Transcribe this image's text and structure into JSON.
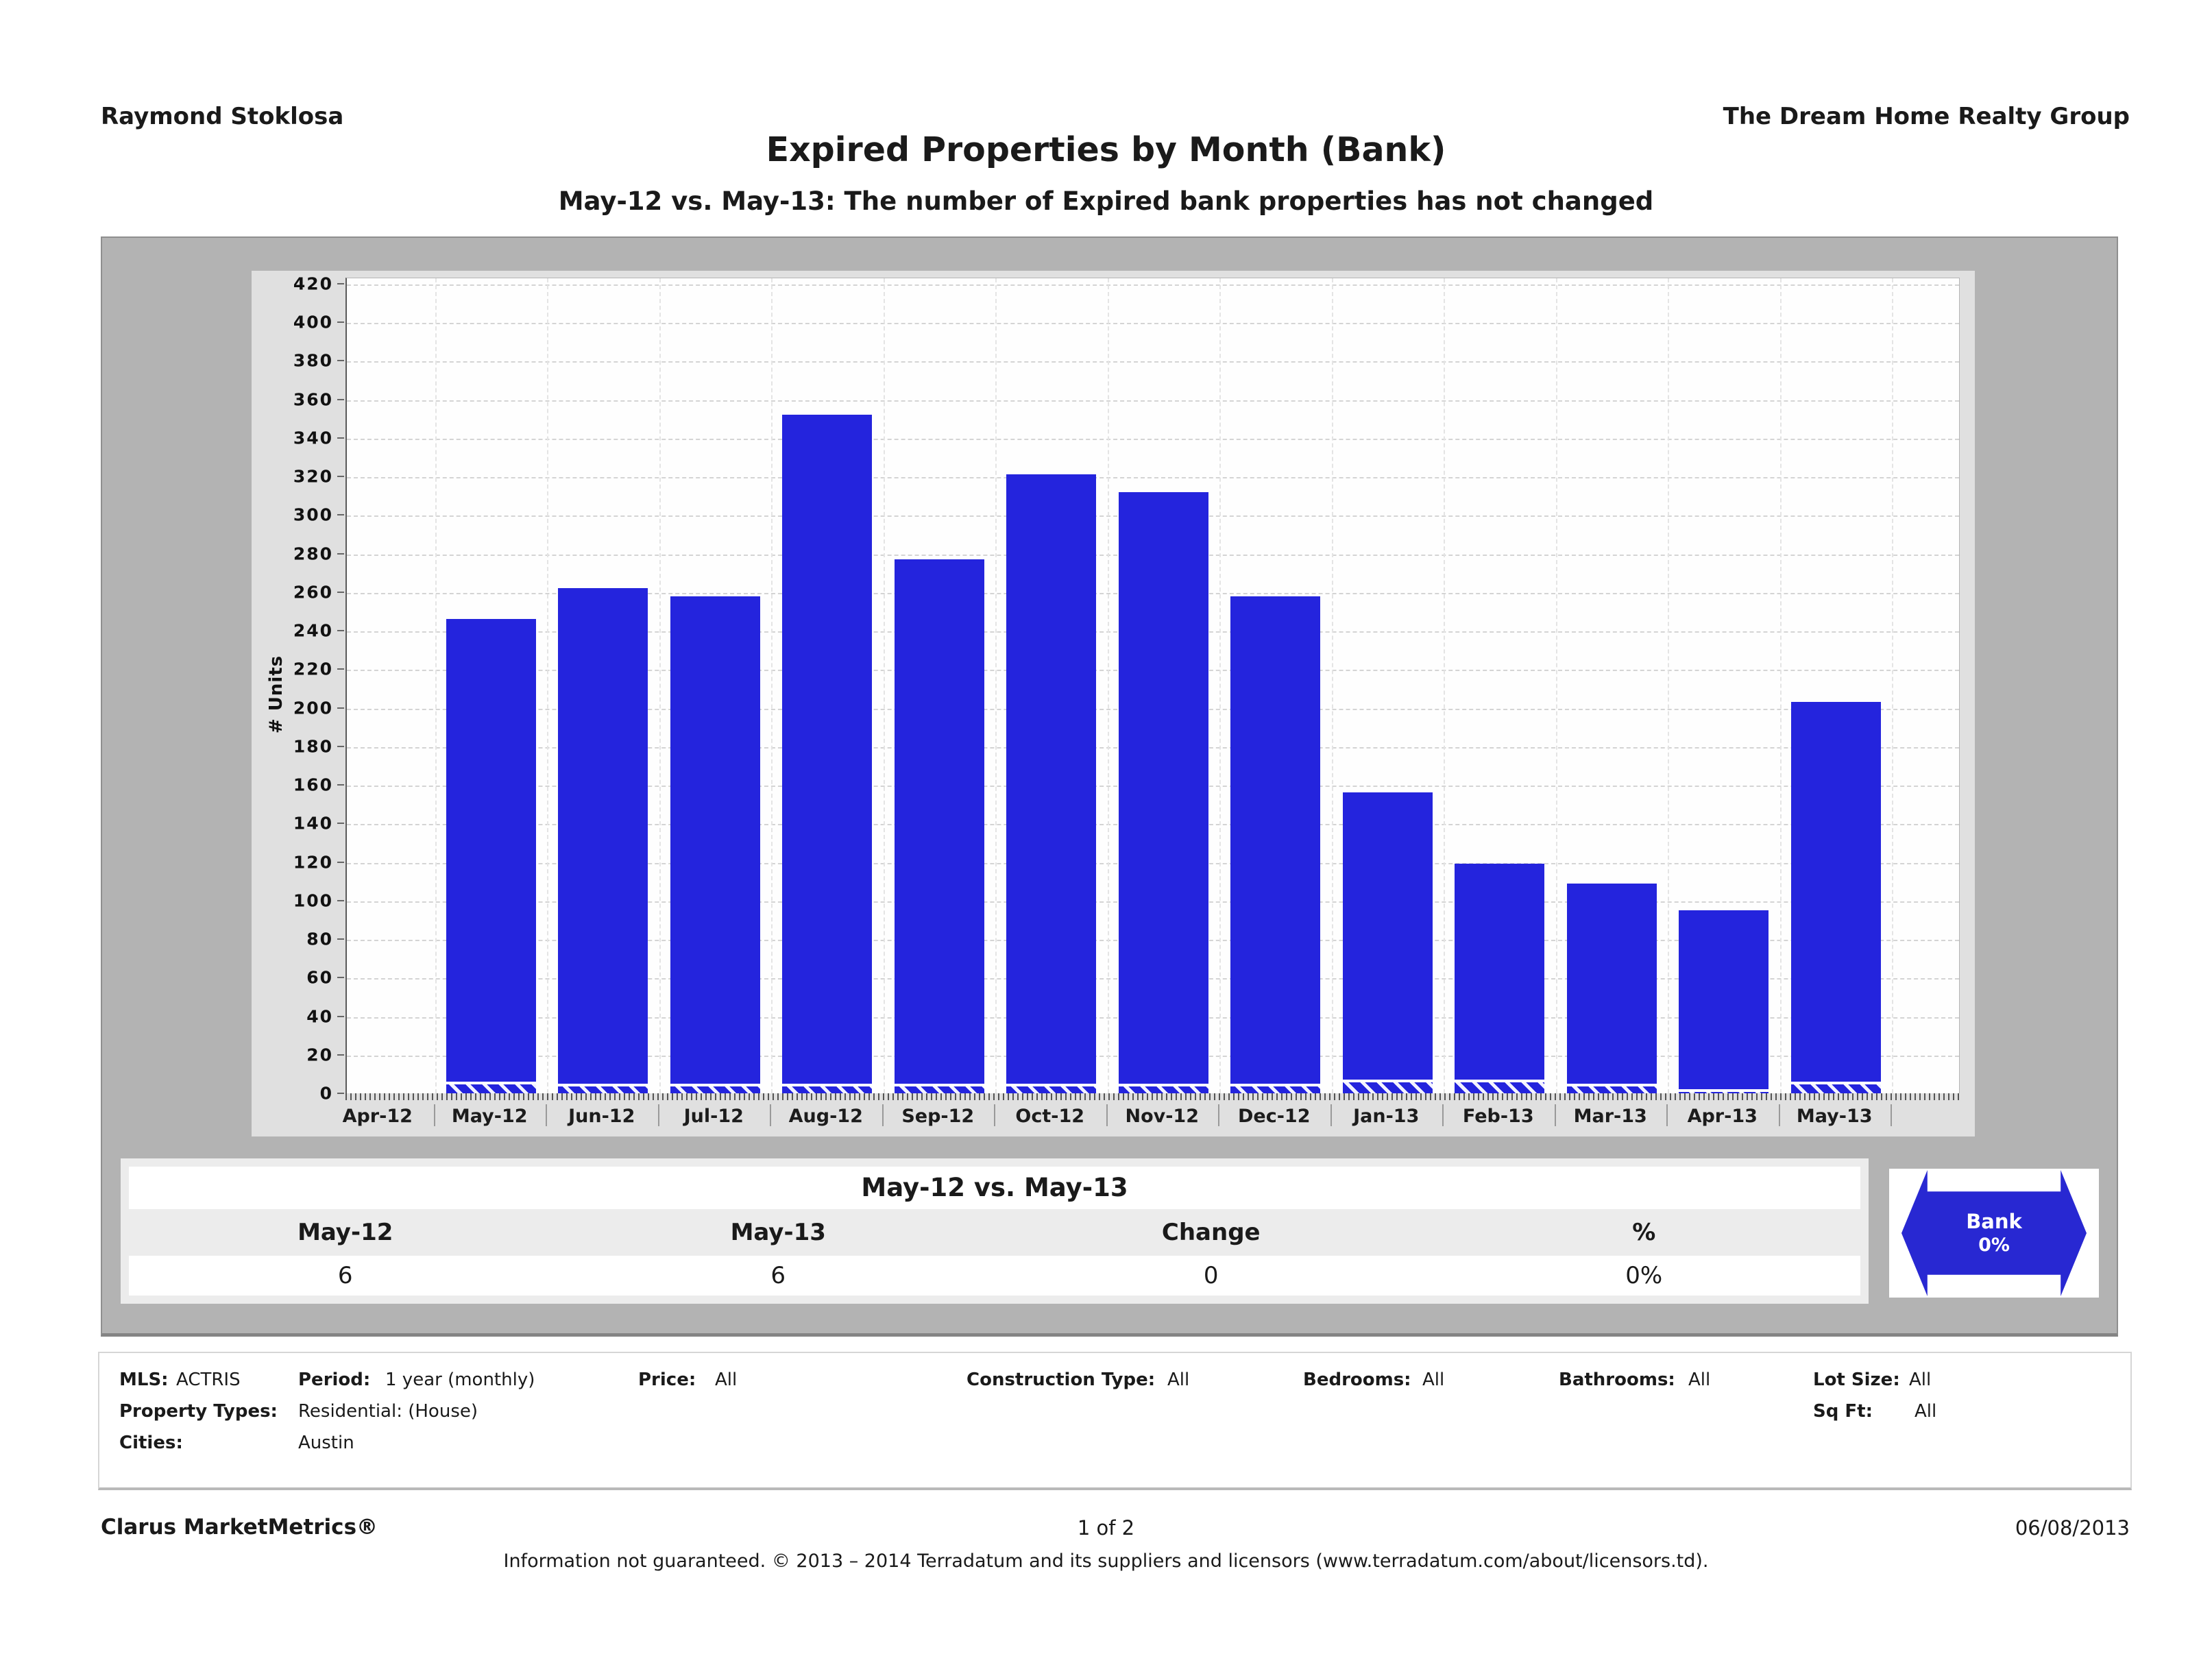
{
  "header": {
    "agent": "Raymond Stoklosa",
    "company": "The Dream Home Realty Group",
    "title": "Expired Properties by Month (Bank)",
    "subtitle": "May-12 vs. May-13: The number of Expired bank properties has not changed"
  },
  "chart_data": {
    "type": "bar",
    "title": "Expired Properties by Month (Bank)",
    "categories": [
      "Apr-12",
      "May-12",
      "Jun-12",
      "Jul-12",
      "Aug-12",
      "Sep-12",
      "Oct-12",
      "Nov-12",
      "Dec-12",
      "Jan-13",
      "Feb-13",
      "Mar-13",
      "Apr-13",
      "May-13"
    ],
    "series": [
      {
        "name": "Expired properties (solid)",
        "values": [
          0,
          246,
          262,
          258,
          352,
          277,
          321,
          312,
          258,
          156,
          119,
          109,
          95,
          203
        ]
      },
      {
        "name": "Expired bank properties (hatched)",
        "values": [
          0,
          6,
          5,
          5,
          5,
          5,
          5,
          5,
          5,
          7,
          7,
          5,
          2,
          6
        ]
      }
    ],
    "xlabel": "",
    "ylabel": "# Units",
    "ylim": [
      0,
      420
    ],
    "ytick_step": 20,
    "grid": "horizontal-dashed",
    "legend": "none",
    "bar_color": "#2424dd",
    "hatch_style": "white-diagonal-stripes"
  },
  "summary_table": {
    "title": "May-12 vs. May-13",
    "columns": [
      "May-12",
      "May-13",
      "Change",
      "%"
    ],
    "values": [
      "6",
      "6",
      "0",
      "0%"
    ]
  },
  "badge": {
    "label": "Bank",
    "value": "0%",
    "color": "#2828d2"
  },
  "filters": [
    {
      "label": "MLS:",
      "value": "ACTRIS"
    },
    {
      "label": "Period:",
      "value": "1 year (monthly)"
    },
    {
      "label": "Price:",
      "value": "All"
    },
    {
      "label": "Construction Type:",
      "value": "All"
    },
    {
      "label": "Bedrooms:",
      "value": "All"
    },
    {
      "label": "Bathrooms:",
      "value": "All"
    },
    {
      "label": "Lot Size:",
      "value": "All"
    },
    {
      "label": "Property Types:",
      "value": "Residential: (House)"
    },
    {
      "label": "Sq Ft:",
      "value": "All"
    },
    {
      "label": "Cities:",
      "value": "Austin"
    }
  ],
  "footer": {
    "brand": "Clarus MarketMetrics®",
    "page": "1 of 2",
    "date": "06/08/2013",
    "disclaimer": "Information not guaranteed.  © 2013 – 2014 Terradatum and its suppliers and licensors (www.terradatum.com/about/licensors.td)."
  }
}
